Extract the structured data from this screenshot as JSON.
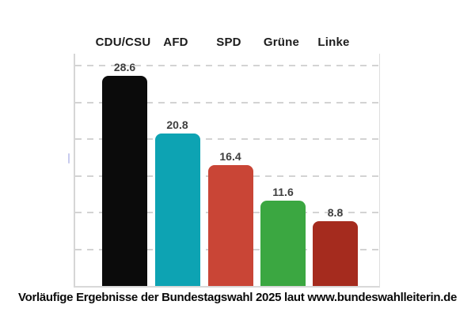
{
  "chart_data": {
    "type": "bar",
    "categories": [
      "CDU/CSU",
      "AFD",
      "SPD",
      "Grüne",
      "Linke"
    ],
    "values": [
      28.6,
      20.8,
      16.4,
      11.6,
      8.8
    ],
    "bar_colors": [
      "#0b0b0b",
      "#0da3b3",
      "#c94536",
      "#3ba741",
      "#a52b1e"
    ],
    "value_labels": [
      "28.6",
      "20.8",
      "16.4",
      "11.6",
      "8.8"
    ],
    "title": "",
    "xlabel": "",
    "ylabel": "",
    "ylim": [
      0,
      31.6
    ],
    "gridline_values": [
      5,
      10,
      15,
      20,
      25,
      30
    ],
    "grid": "horizontal-dashed",
    "legend": "none",
    "colors": {
      "grid": "#cbcbcb",
      "axis": "#d6d6d6",
      "category_label": "#1c1c1c",
      "value_label": "#3e3e3e",
      "background": "#ffffff"
    }
  },
  "caption": {
    "text": "Vorläufige Ergebnisse der Bundestagswahl 2025 laut www.bundeswahlleiterin.de"
  }
}
